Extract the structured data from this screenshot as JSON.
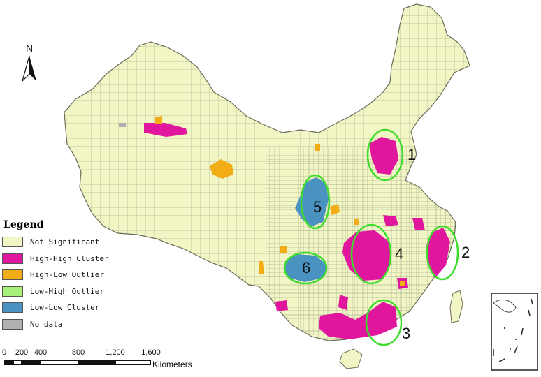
{
  "north_arrow": {
    "label": "N"
  },
  "legend": {
    "title": "Legend",
    "items": [
      {
        "label": "Not Significant",
        "color": "#f1f6c4"
      },
      {
        "label": "High-High Cluster",
        "color": "#e0169e"
      },
      {
        "label": "High-Low Outlier",
        "color": "#f2ac16"
      },
      {
        "label": "Low-High Outlier",
        "color": "#a6f078"
      },
      {
        "label": "Low-Low Cluster",
        "color": "#4a92c0"
      },
      {
        "label": "No data",
        "color": "#b0b0b0"
      }
    ]
  },
  "cluster_labels": [
    "1",
    "2",
    "3",
    "4",
    "5",
    "6"
  ],
  "scale_bar": {
    "ticks": [
      "0",
      "200",
      "400",
      "800",
      "1,200",
      "1,600"
    ],
    "units": "Kilometers"
  },
  "colors": {
    "map_fill": "#f1f6c4",
    "map_outline": "#6b6b5a",
    "highlight_ring": "#3ddc2c",
    "coast": "#555555"
  }
}
